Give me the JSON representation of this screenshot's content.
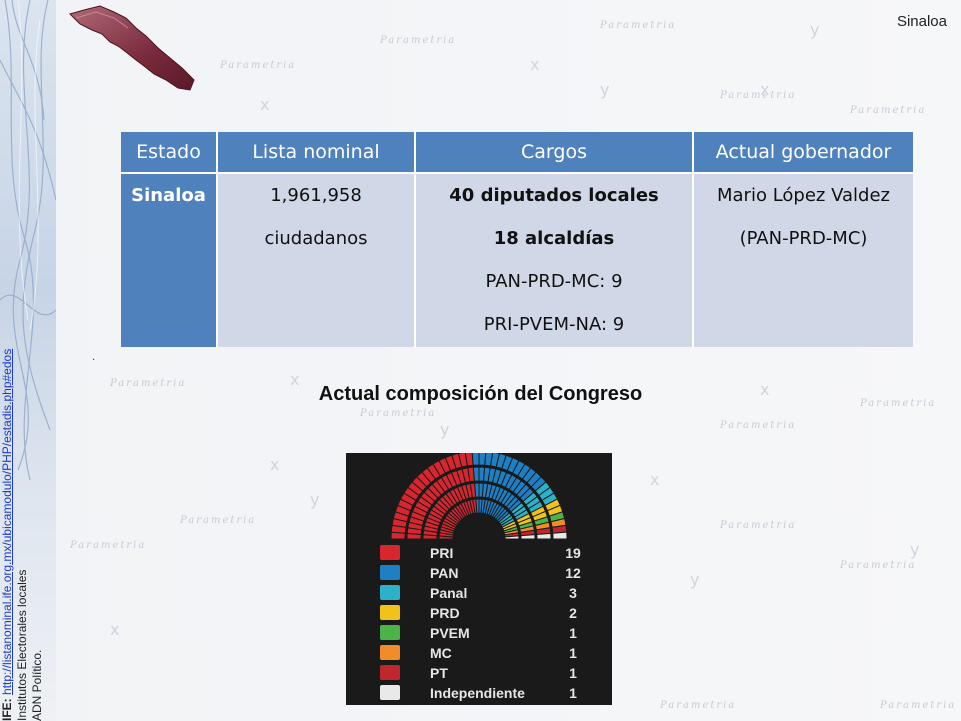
{
  "header": {
    "state_label": "Sinaloa"
  },
  "source": {
    "label": "IFE:",
    "url": "http://listanominal.ife.org.mx/ubicamodulo/PHP/estadis.php#edos",
    "line2": "Institutos Electorales locales",
    "line3": "ADN Político."
  },
  "table": {
    "headers": [
      "Estado",
      "Lista nominal",
      "Cargos",
      "Actual gobernador"
    ],
    "state": "Sinaloa",
    "lista_nominal": [
      "1,961,958",
      "ciudadanos"
    ],
    "cargos": [
      "40 diputados locales",
      "18 alcaldías",
      "PAN-PRD-MC: 9",
      "PRI-PVEM-NA: 9"
    ],
    "gobernador": [
      "Mario López Valdez",
      "(PAN-PRD-MC)"
    ]
  },
  "footnote_dot": ".",
  "congress": {
    "title": "Actual composición del Congreso",
    "parties": [
      {
        "name": "PRI",
        "seats": 19,
        "color": "#d7262e"
      },
      {
        "name": "PAN",
        "seats": 12,
        "color": "#1f7fc4"
      },
      {
        "name": "Panal",
        "seats": 3,
        "color": "#2bb2c8"
      },
      {
        "name": "PRD",
        "seats": 2,
        "color": "#f3c21a"
      },
      {
        "name": "PVEM",
        "seats": 1,
        "color": "#4bb348"
      },
      {
        "name": "MC",
        "seats": 1,
        "color": "#f28c28"
      },
      {
        "name": "PT",
        "seats": 1,
        "color": "#c0272d"
      },
      {
        "name": "Independiente",
        "seats": 1,
        "color": "#e9e9e9"
      }
    ]
  },
  "colors": {
    "header_blue": "#4f81bd",
    "cell_blue": "#d0d8e8",
    "chamber_bg": "#1a1a1a"
  }
}
